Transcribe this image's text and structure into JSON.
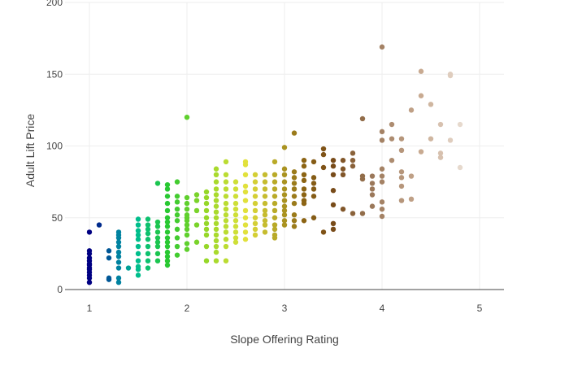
{
  "chart_data": {
    "type": "scatter",
    "title": "",
    "xlabel": "Slope Offering Rating",
    "ylabel": "Adult Lift Price",
    "xlim": [
      0.75,
      5.25
    ],
    "ylim": [
      0,
      200
    ],
    "x_ticks": [
      1,
      2,
      3,
      4,
      5
    ],
    "y_ticks": [
      0,
      50,
      100,
      150,
      200
    ],
    "grid": true,
    "legend": "none",
    "color_scale": "rating-based gradient (navy → teal → green → yellow → brown → beige)",
    "points": [
      [
        1.0,
        5
      ],
      [
        1.0,
        8
      ],
      [
        1.0,
        10
      ],
      [
        1.0,
        12
      ],
      [
        1.0,
        14
      ],
      [
        1.0,
        15
      ],
      [
        1.0,
        17
      ],
      [
        1.0,
        18
      ],
      [
        1.0,
        20
      ],
      [
        1.0,
        22
      ],
      [
        1.0,
        25
      ],
      [
        1.0,
        27
      ],
      [
        1.0,
        40
      ],
      [
        1.1,
        45
      ],
      [
        1.2,
        7
      ],
      [
        1.2,
        8
      ],
      [
        1.2,
        22
      ],
      [
        1.2,
        27
      ],
      [
        1.3,
        5
      ],
      [
        1.3,
        8
      ],
      [
        1.3,
        15
      ],
      [
        1.3,
        19
      ],
      [
        1.3,
        23
      ],
      [
        1.3,
        26
      ],
      [
        1.3,
        30
      ],
      [
        1.3,
        33
      ],
      [
        1.3,
        36
      ],
      [
        1.3,
        38
      ],
      [
        1.3,
        40
      ],
      [
        1.4,
        15
      ],
      [
        1.5,
        10
      ],
      [
        1.5,
        14
      ],
      [
        1.5,
        16
      ],
      [
        1.5,
        20
      ],
      [
        1.5,
        25
      ],
      [
        1.5,
        30
      ],
      [
        1.5,
        35
      ],
      [
        1.5,
        38
      ],
      [
        1.5,
        41
      ],
      [
        1.5,
        45
      ],
      [
        1.5,
        49
      ],
      [
        1.6,
        15
      ],
      [
        1.6,
        20
      ],
      [
        1.6,
        25
      ],
      [
        1.6,
        30
      ],
      [
        1.6,
        35
      ],
      [
        1.6,
        39
      ],
      [
        1.6,
        42
      ],
      [
        1.6,
        45
      ],
      [
        1.6,
        49
      ],
      [
        1.7,
        20
      ],
      [
        1.7,
        25
      ],
      [
        1.7,
        30
      ],
      [
        1.7,
        33
      ],
      [
        1.7,
        36
      ],
      [
        1.7,
        40
      ],
      [
        1.7,
        44
      ],
      [
        1.7,
        47
      ],
      [
        1.7,
        74
      ],
      [
        1.8,
        17
      ],
      [
        1.8,
        20
      ],
      [
        1.8,
        23
      ],
      [
        1.8,
        26
      ],
      [
        1.8,
        30
      ],
      [
        1.8,
        33
      ],
      [
        1.8,
        36
      ],
      [
        1.8,
        40
      ],
      [
        1.8,
        44
      ],
      [
        1.8,
        47
      ],
      [
        1.8,
        50
      ],
      [
        1.8,
        55
      ],
      [
        1.8,
        60
      ],
      [
        1.8,
        65
      ],
      [
        1.8,
        70
      ],
      [
        1.8,
        73
      ],
      [
        1.9,
        24
      ],
      [
        1.9,
        30
      ],
      [
        1.9,
        36
      ],
      [
        1.9,
        42
      ],
      [
        1.9,
        48
      ],
      [
        1.9,
        52
      ],
      [
        1.9,
        56
      ],
      [
        1.9,
        61
      ],
      [
        1.9,
        65
      ],
      [
        1.9,
        75
      ],
      [
        2.0,
        28
      ],
      [
        2.0,
        32
      ],
      [
        2.0,
        38
      ],
      [
        2.0,
        42
      ],
      [
        2.0,
        45
      ],
      [
        2.0,
        48
      ],
      [
        2.0,
        50
      ],
      [
        2.0,
        52
      ],
      [
        2.0,
        56
      ],
      [
        2.0,
        60
      ],
      [
        2.0,
        64
      ],
      [
        2.0,
        120
      ],
      [
        2.1,
        33
      ],
      [
        2.1,
        45
      ],
      [
        2.1,
        55
      ],
      [
        2.1,
        62
      ],
      [
        2.1,
        66
      ],
      [
        2.2,
        20
      ],
      [
        2.2,
        30
      ],
      [
        2.2,
        38
      ],
      [
        2.2,
        42
      ],
      [
        2.2,
        46
      ],
      [
        2.2,
        50
      ],
      [
        2.2,
        55
      ],
      [
        2.2,
        60
      ],
      [
        2.2,
        64
      ],
      [
        2.2,
        68
      ],
      [
        2.3,
        20
      ],
      [
        2.3,
        26
      ],
      [
        2.3,
        30
      ],
      [
        2.3,
        34
      ],
      [
        2.3,
        38
      ],
      [
        2.3,
        42
      ],
      [
        2.3,
        46
      ],
      [
        2.3,
        50
      ],
      [
        2.3,
        54
      ],
      [
        2.3,
        58
      ],
      [
        2.3,
        62
      ],
      [
        2.3,
        66
      ],
      [
        2.3,
        70
      ],
      [
        2.3,
        75
      ],
      [
        2.3,
        80
      ],
      [
        2.3,
        84
      ],
      [
        2.4,
        20
      ],
      [
        2.4,
        30
      ],
      [
        2.4,
        35
      ],
      [
        2.4,
        40
      ],
      [
        2.4,
        44
      ],
      [
        2.4,
        48
      ],
      [
        2.4,
        52
      ],
      [
        2.4,
        56
      ],
      [
        2.4,
        60
      ],
      [
        2.4,
        65
      ],
      [
        2.4,
        70
      ],
      [
        2.4,
        75
      ],
      [
        2.4,
        80
      ],
      [
        2.4,
        89
      ],
      [
        2.5,
        33
      ],
      [
        2.5,
        36
      ],
      [
        2.5,
        40
      ],
      [
        2.5,
        44
      ],
      [
        2.5,
        48
      ],
      [
        2.5,
        52
      ],
      [
        2.5,
        56
      ],
      [
        2.5,
        60
      ],
      [
        2.5,
        65
      ],
      [
        2.5,
        70
      ],
      [
        2.5,
        75
      ],
      [
        2.6,
        35
      ],
      [
        2.6,
        40
      ],
      [
        2.6,
        45
      ],
      [
        2.6,
        50
      ],
      [
        2.6,
        55
      ],
      [
        2.6,
        62
      ],
      [
        2.6,
        68
      ],
      [
        2.6,
        72
      ],
      [
        2.6,
        80
      ],
      [
        2.6,
        87
      ],
      [
        2.6,
        89
      ],
      [
        2.7,
        38
      ],
      [
        2.7,
        42
      ],
      [
        2.7,
        46
      ],
      [
        2.7,
        50
      ],
      [
        2.7,
        55
      ],
      [
        2.7,
        60
      ],
      [
        2.7,
        65
      ],
      [
        2.7,
        70
      ],
      [
        2.7,
        75
      ],
      [
        2.7,
        80
      ],
      [
        2.8,
        40
      ],
      [
        2.8,
        45
      ],
      [
        2.8,
        48
      ],
      [
        2.8,
        52
      ],
      [
        2.8,
        55
      ],
      [
        2.8,
        60
      ],
      [
        2.8,
        65
      ],
      [
        2.8,
        70
      ],
      [
        2.8,
        75
      ],
      [
        2.8,
        80
      ],
      [
        2.9,
        36
      ],
      [
        2.9,
        38
      ],
      [
        2.9,
        42
      ],
      [
        2.9,
        45
      ],
      [
        2.9,
        50
      ],
      [
        2.9,
        55
      ],
      [
        2.9,
        60
      ],
      [
        2.9,
        65
      ],
      [
        2.9,
        70
      ],
      [
        2.9,
        75
      ],
      [
        2.9,
        80
      ],
      [
        2.9,
        89
      ],
      [
        3.0,
        45
      ],
      [
        3.0,
        48
      ],
      [
        3.0,
        52
      ],
      [
        3.0,
        55
      ],
      [
        3.0,
        58
      ],
      [
        3.0,
        62
      ],
      [
        3.0,
        66
      ],
      [
        3.0,
        70
      ],
      [
        3.0,
        75
      ],
      [
        3.0,
        80
      ],
      [
        3.0,
        84
      ],
      [
        3.0,
        99
      ],
      [
        3.1,
        44
      ],
      [
        3.1,
        48
      ],
      [
        3.1,
        52
      ],
      [
        3.1,
        60
      ],
      [
        3.1,
        65
      ],
      [
        3.1,
        70
      ],
      [
        3.1,
        74
      ],
      [
        3.1,
        78
      ],
      [
        3.1,
        82
      ],
      [
        3.1,
        109
      ],
      [
        3.2,
        48
      ],
      [
        3.2,
        60
      ],
      [
        3.2,
        62
      ],
      [
        3.2,
        66
      ],
      [
        3.2,
        70
      ],
      [
        3.2,
        76
      ],
      [
        3.2,
        80
      ],
      [
        3.2,
        86
      ],
      [
        3.2,
        90
      ],
      [
        3.3,
        50
      ],
      [
        3.3,
        65
      ],
      [
        3.3,
        70
      ],
      [
        3.3,
        74
      ],
      [
        3.3,
        78
      ],
      [
        3.3,
        89
      ],
      [
        3.4,
        40
      ],
      [
        3.4,
        85
      ],
      [
        3.4,
        94
      ],
      [
        3.4,
        98
      ],
      [
        3.5,
        42
      ],
      [
        3.5,
        46
      ],
      [
        3.5,
        59
      ],
      [
        3.5,
        69
      ],
      [
        3.5,
        80
      ],
      [
        3.5,
        86
      ],
      [
        3.5,
        90
      ],
      [
        3.6,
        56
      ],
      [
        3.6,
        80
      ],
      [
        3.6,
        84
      ],
      [
        3.6,
        90
      ],
      [
        3.7,
        53
      ],
      [
        3.7,
        86
      ],
      [
        3.7,
        90
      ],
      [
        3.7,
        95
      ],
      [
        3.8,
        53
      ],
      [
        3.8,
        77
      ],
      [
        3.8,
        79
      ],
      [
        3.8,
        119
      ],
      [
        3.9,
        58
      ],
      [
        3.9,
        66
      ],
      [
        3.9,
        70
      ],
      [
        3.9,
        74
      ],
      [
        3.9,
        79
      ],
      [
        4.0,
        51
      ],
      [
        4.0,
        56
      ],
      [
        4.0,
        61
      ],
      [
        4.0,
        75
      ],
      [
        4.0,
        79
      ],
      [
        4.0,
        84
      ],
      [
        4.0,
        104
      ],
      [
        4.0,
        110
      ],
      [
        4.0,
        169
      ],
      [
        4.1,
        90
      ],
      [
        4.1,
        105
      ],
      [
        4.1,
        115
      ],
      [
        4.2,
        62
      ],
      [
        4.2,
        72
      ],
      [
        4.2,
        78
      ],
      [
        4.2,
        82
      ],
      [
        4.2,
        97
      ],
      [
        4.2,
        105
      ],
      [
        4.3,
        63
      ],
      [
        4.3,
        79
      ],
      [
        4.3,
        125
      ],
      [
        4.4,
        96
      ],
      [
        4.4,
        135
      ],
      [
        4.4,
        152
      ],
      [
        4.5,
        105
      ],
      [
        4.5,
        129
      ],
      [
        4.6,
        92
      ],
      [
        4.6,
        95
      ],
      [
        4.6,
        115
      ],
      [
        4.7,
        104
      ],
      [
        4.7,
        149
      ],
      [
        4.7,
        150
      ],
      [
        4.8,
        85
      ],
      [
        4.8,
        115
      ]
    ]
  }
}
